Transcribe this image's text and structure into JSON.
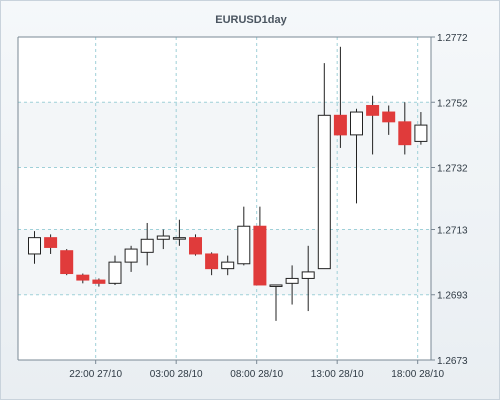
{
  "colors": {
    "up_fill": "#ffffff",
    "down_fill": "#e03b3b",
    "wick": "#222222",
    "grid": "#9fd0d8",
    "axis": "#7a8894",
    "band": "#ffffff"
  },
  "chart_data": {
    "type": "candlestick",
    "title": "EURUSD1day",
    "y_axis_position": "right",
    "ylim": [
      1.2673,
      1.2772
    ],
    "y_ticks": [
      "1.2772",
      "1.2752",
      "1.2732",
      "1.2713",
      "1.2693",
      "1.2673"
    ],
    "x_ticks": [
      "22:00 27/10",
      "03:00 28/10",
      "08:00 28/10",
      "13:00 28/10",
      "18:00 28/10"
    ],
    "x_tick_positions": [
      4.8,
      9.8,
      14.8,
      19.8,
      24.8
    ],
    "grid": true,
    "candles": [
      {
        "i": 1,
        "o": 1.27055,
        "h": 1.27125,
        "l": 1.27025,
        "c": 1.27105
      },
      {
        "i": 2,
        "o": 1.27105,
        "h": 1.27115,
        "l": 1.27055,
        "c": 1.27075
      },
      {
        "i": 3,
        "o": 1.27065,
        "h": 1.2707,
        "l": 1.2699,
        "c": 1.26995
      },
      {
        "i": 4,
        "o": 1.2699,
        "h": 1.26995,
        "l": 1.26965,
        "c": 1.26975
      },
      {
        "i": 5,
        "o": 1.26975,
        "h": 1.2698,
        "l": 1.26955,
        "c": 1.26965
      },
      {
        "i": 6,
        "o": 1.26965,
        "h": 1.2705,
        "l": 1.2696,
        "c": 1.2703
      },
      {
        "i": 7,
        "o": 1.2703,
        "h": 1.2708,
        "l": 1.27,
        "c": 1.2707
      },
      {
        "i": 8,
        "o": 1.2706,
        "h": 1.2715,
        "l": 1.2702,
        "c": 1.271
      },
      {
        "i": 9,
        "o": 1.271,
        "h": 1.2713,
        "l": 1.2707,
        "c": 1.2711
      },
      {
        "i": 10,
        "o": 1.27105,
        "h": 1.2716,
        "l": 1.2708,
        "c": 1.27105
      },
      {
        "i": 11,
        "o": 1.27105,
        "h": 1.27115,
        "l": 1.2705,
        "c": 1.27055
      },
      {
        "i": 12,
        "o": 1.27055,
        "h": 1.2706,
        "l": 1.2699,
        "c": 1.2701
      },
      {
        "i": 13,
        "o": 1.2701,
        "h": 1.2705,
        "l": 1.2699,
        "c": 1.2703
      },
      {
        "i": 14,
        "o": 1.27025,
        "h": 1.272,
        "l": 1.2702,
        "c": 1.2714
      },
      {
        "i": 15,
        "o": 1.2714,
        "h": 1.272,
        "l": 1.2696,
        "c": 1.2696
      },
      {
        "i": 16,
        "o": 1.2696,
        "h": 1.2696,
        "l": 1.2685,
        "c": 1.2696
      },
      {
        "i": 17,
        "o": 1.26965,
        "h": 1.2702,
        "l": 1.269,
        "c": 1.2698
      },
      {
        "i": 18,
        "o": 1.2698,
        "h": 1.2708,
        "l": 1.2688,
        "c": 1.27
      },
      {
        "i": 19,
        "o": 1.2701,
        "h": 1.2764,
        "l": 1.2701,
        "c": 1.2748
      },
      {
        "i": 20,
        "o": 1.2748,
        "h": 1.2769,
        "l": 1.2738,
        "c": 1.2742
      },
      {
        "i": 21,
        "o": 1.2742,
        "h": 1.275,
        "l": 1.2721,
        "c": 1.2749
      },
      {
        "i": 22,
        "o": 1.2751,
        "h": 1.2754,
        "l": 1.2736,
        "c": 1.2748
      },
      {
        "i": 23,
        "o": 1.2749,
        "h": 1.2751,
        "l": 1.2742,
        "c": 1.2746
      },
      {
        "i": 24,
        "o": 1.2746,
        "h": 1.2752,
        "l": 1.2736,
        "c": 1.2739
      },
      {
        "i": 25,
        "o": 1.274,
        "h": 1.2749,
        "l": 1.2739,
        "c": 1.2745
      }
    ]
  }
}
